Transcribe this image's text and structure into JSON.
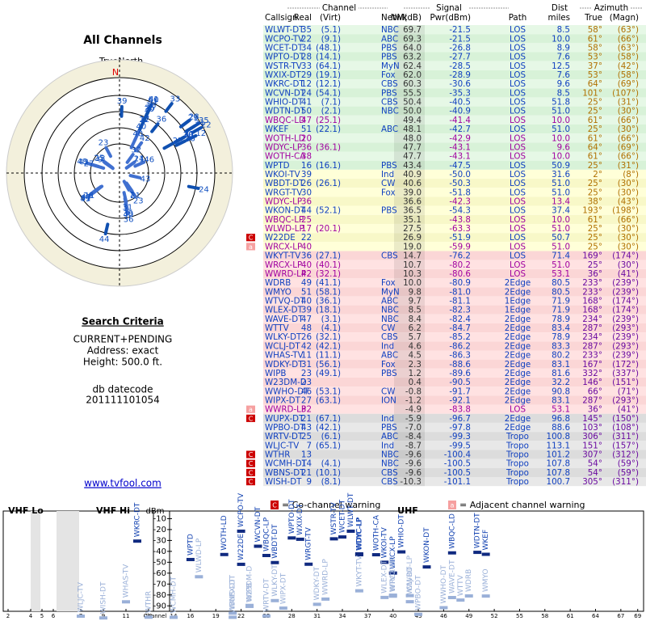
{
  "left": {
    "title": "All Channels",
    "north_label": "TrueNorth",
    "north_letter": "N",
    "criteria_title": "Search Criteria",
    "criteria": [
      "CURRENT+PENDING",
      "Address: exact",
      "Height: 500.0 ft."
    ],
    "datecode_label": "db datecode",
    "datecode": "201111101054",
    "link": "www.tvfool.com"
  },
  "table": {
    "groups": {
      "channel": "Channel",
      "signal": "Signal",
      "dist": "Dist",
      "azimuth": "Azimuth"
    },
    "headers": {
      "callsign": "Callsign",
      "real": "Real",
      "virt": "(Virt)",
      "netwk": "Netwk",
      "nm": "NM(dB)",
      "pwr": "Pwr(dBm)",
      "path": "Path",
      "dist": "miles",
      "true": "True",
      "magn": "(Magn)"
    },
    "rows": [
      {
        "callsign": "WLWT-DT",
        "real": "35",
        "virt": "(5.1)",
        "netwk": "NBC",
        "nm": "69.7",
        "pwr": "-21.5",
        "path": "LOS",
        "dist": "8.5",
        "true": "58°",
        "magn": "(63°)"
      },
      {
        "callsign": "WCPO-TV",
        "real": "22",
        "virt": "(9.1)",
        "netwk": "ABC",
        "nm": "69.3",
        "pwr": "-21.5",
        "path": "LOS",
        "dist": "10.0",
        "true": "61°",
        "magn": "(66°)"
      },
      {
        "callsign": "WCET-DT",
        "real": "34",
        "virt": "(48.1)",
        "netwk": "PBS",
        "nm": "64.0",
        "pwr": "-26.8",
        "path": "LOS",
        "dist": "8.9",
        "true": "58°",
        "magn": "(63°)"
      },
      {
        "callsign": "WPTO-DT",
        "real": "28",
        "virt": "(14.1)",
        "netwk": "PBS",
        "nm": "63.2",
        "pwr": "-27.7",
        "path": "LOS",
        "dist": "7.6",
        "true": "53°",
        "magn": "(58°)"
      },
      {
        "callsign": "WSTR-TV",
        "real": "33",
        "virt": "(64.1)",
        "netwk": "MyN",
        "nm": "62.4",
        "pwr": "-28.5",
        "path": "LOS",
        "dist": "12.5",
        "true": "37°",
        "magn": "(42°)"
      },
      {
        "callsign": "WXIX-DT",
        "real": "29",
        "virt": "(19.1)",
        "netwk": "Fox",
        "nm": "62.0",
        "pwr": "-28.9",
        "path": "LOS",
        "dist": "7.6",
        "true": "53°",
        "magn": "(58°)"
      },
      {
        "callsign": "WKRC-DT",
        "real": "12",
        "virt": "(12.1)",
        "netwk": "CBS",
        "nm": "60.3",
        "pwr": "-30.6",
        "path": "LOS",
        "dist": "9.6",
        "true": "64°",
        "magn": "(69°)"
      },
      {
        "callsign": "WCVN-DT",
        "real": "24",
        "virt": "(54.1)",
        "netwk": "PBS",
        "nm": "55.5",
        "pwr": "-35.3",
        "path": "LOS",
        "dist": "8.5",
        "true": "101°",
        "magn": "(107°)"
      },
      {
        "callsign": "WHIO-DT",
        "real": "41",
        "virt": "(7.1)",
        "netwk": "CBS",
        "nm": "50.4",
        "pwr": "-40.5",
        "path": "LOS",
        "dist": "51.8",
        "true": "25°",
        "magn": "(31°)"
      },
      {
        "callsign": "WDTN-DT",
        "real": "50",
        "virt": "(2.1)",
        "netwk": "NBC",
        "nm": "50.0",
        "pwr": "-40.9",
        "path": "LOS",
        "dist": "51.0",
        "true": "25°",
        "magn": "(30°)"
      },
      {
        "callsign": "WBQC-LD",
        "real": "47",
        "virt": "(25.1)",
        "netwk": "",
        "nm": "49.4",
        "pwr": "-41.4",
        "path": "LOS",
        "dist": "10.0",
        "true": "61°",
        "magn": "(66°)"
      },
      {
        "callsign": "WKEF",
        "real": "51",
        "virt": "(22.1)",
        "netwk": "ABC",
        "nm": "48.1",
        "pwr": "-42.7",
        "path": "LOS",
        "dist": "51.0",
        "true": "25°",
        "magn": "(30°)"
      },
      {
        "callsign": "WOTH-LD",
        "real": "20",
        "virt": "",
        "netwk": "",
        "nm": "48.0",
        "pwr": "-42.9",
        "path": "LOS",
        "dist": "10.0",
        "true": "61°",
        "magn": "(66°)"
      },
      {
        "callsign": "WDYC-LP",
        "real": "36",
        "virt": "(36.1)",
        "netwk": "",
        "nm": "47.7",
        "pwr": "-43.1",
        "path": "LOS",
        "dist": "9.6",
        "true": "64°",
        "magn": "(69°)"
      },
      {
        "callsign": "WOTH-CA",
        "real": "38",
        "virt": "",
        "netwk": "",
        "nm": "47.7",
        "pwr": "-43.1",
        "path": "LOS",
        "dist": "10.0",
        "true": "61°",
        "magn": "(66°)"
      },
      {
        "callsign": "WPTD",
        "real": "16",
        "virt": "(16.1)",
        "netwk": "PBS",
        "nm": "43.4",
        "pwr": "-47.5",
        "path": "LOS",
        "dist": "50.9",
        "true": "25°",
        "magn": "(31°)"
      },
      {
        "callsign": "WKOI-TV",
        "real": "39",
        "virt": "",
        "netwk": "Ind",
        "nm": "40.9",
        "pwr": "-50.0",
        "path": "LOS",
        "dist": "31.6",
        "true": "2°",
        "magn": "(8°)"
      },
      {
        "callsign": "WBDT-DT",
        "real": "26",
        "virt": "(26.1)",
        "netwk": "CW",
        "nm": "40.6",
        "pwr": "-50.3",
        "path": "LOS",
        "dist": "51.0",
        "true": "25°",
        "magn": "(30°)"
      },
      {
        "callsign": "WRGT-TV",
        "real": "30",
        "virt": "",
        "netwk": "Fox",
        "nm": "39.0",
        "pwr": "-51.8",
        "path": "LOS",
        "dist": "51.0",
        "true": "25°",
        "magn": "(30°)"
      },
      {
        "callsign": "WDYC-LP",
        "real": "36",
        "virt": "",
        "netwk": "",
        "nm": "36.6",
        "pwr": "-42.3",
        "path": "LOS",
        "dist": "13.4",
        "true": "38°",
        "magn": "(43°)"
      },
      {
        "callsign": "WKON-DT",
        "real": "44",
        "virt": "(52.1)",
        "netwk": "PBS",
        "nm": "36.5",
        "pwr": "-54.3",
        "path": "LOS",
        "dist": "37.4",
        "true": "193°",
        "magn": "(198°)"
      },
      {
        "callsign": "WBQC-LP",
        "real": "25",
        "virt": "",
        "netwk": "",
        "nm": "35.1",
        "pwr": "-43.8",
        "path": "LOS",
        "dist": "10.0",
        "true": "61°",
        "magn": "(66°)"
      },
      {
        "callsign": "WLWD-LP",
        "real": "17",
        "virt": "(20.1)",
        "netwk": "",
        "nm": "27.5",
        "pwr": "-63.3",
        "path": "LOS",
        "dist": "51.0",
        "true": "25°",
        "magn": "(30°)"
      },
      {
        "callsign": "W22DE",
        "real": "22",
        "virt": "",
        "netwk": "",
        "nm": "26.9",
        "pwr": "-51.9",
        "path": "LOS",
        "dist": "50.7",
        "true": "25°",
        "magn": "(30°)",
        "warn": "C"
      },
      {
        "callsign": "WRCX-LP",
        "real": "40",
        "virt": "",
        "netwk": "",
        "nm": "19.0",
        "pwr": "-59.9",
        "path": "LOS",
        "dist": "51.0",
        "true": "25°",
        "magn": "(30°)",
        "warn": "a"
      },
      {
        "callsign": "WKYT-TV",
        "real": "36",
        "virt": "(27.1)",
        "netwk": "CBS",
        "nm": "14.7",
        "pwr": "-76.2",
        "path": "LOS",
        "dist": "71.4",
        "true": "169°",
        "magn": "(174°)"
      },
      {
        "callsign": "WRCX-LP",
        "real": "40",
        "virt": "(40.1)",
        "netwk": "",
        "nm": "10.7",
        "pwr": "-80.2",
        "path": "LOS",
        "dist": "51.0",
        "true": "25°",
        "magn": "(30°)"
      },
      {
        "callsign": "WWRD-LP",
        "real": "42",
        "virt": "(32.1)",
        "netwk": "",
        "nm": "10.3",
        "pwr": "-80.6",
        "path": "LOS",
        "dist": "53.1",
        "true": "36°",
        "magn": "(41°)"
      },
      {
        "callsign": "WDRB",
        "real": "49",
        "virt": "(41.1)",
        "netwk": "Fox",
        "nm": "10.0",
        "pwr": "-80.9",
        "path": "2Edge",
        "dist": "80.5",
        "true": "233°",
        "magn": "(239°)"
      },
      {
        "callsign": "WMYO",
        "real": "51",
        "virt": "(58.1)",
        "netwk": "MyN",
        "nm": "9.8",
        "pwr": "-81.0",
        "path": "2Edge",
        "dist": "80.5",
        "true": "233°",
        "magn": "(239°)"
      },
      {
        "callsign": "WTVQ-DT",
        "real": "40",
        "virt": "(36.1)",
        "netwk": "ABC",
        "nm": "9.7",
        "pwr": "-81.1",
        "path": "1Edge",
        "dist": "71.9",
        "true": "168°",
        "magn": "(174°)"
      },
      {
        "callsign": "WLEX-DT",
        "real": "39",
        "virt": "(18.1)",
        "netwk": "NBC",
        "nm": "8.5",
        "pwr": "-82.3",
        "path": "1Edge",
        "dist": "71.9",
        "true": "168°",
        "magn": "(174°)"
      },
      {
        "callsign": "WAVE-DT",
        "real": "47",
        "virt": "(3.1)",
        "netwk": "NBC",
        "nm": "8.4",
        "pwr": "-82.4",
        "path": "2Edge",
        "dist": "78.9",
        "true": "234°",
        "magn": "(239°)"
      },
      {
        "callsign": "WTTV",
        "real": "48",
        "virt": "(4.1)",
        "netwk": "CW",
        "nm": "6.2",
        "pwr": "-84.7",
        "path": "2Edge",
        "dist": "83.4",
        "true": "287°",
        "magn": "(293°)"
      },
      {
        "callsign": "WLKY-DT",
        "real": "26",
        "virt": "(32.1)",
        "netwk": "CBS",
        "nm": "5.7",
        "pwr": "-85.2",
        "path": "2Edge",
        "dist": "78.9",
        "true": "234°",
        "magn": "(239°)"
      },
      {
        "callsign": "WCLJ-DT",
        "real": "42",
        "virt": "(42.1)",
        "netwk": "Ind",
        "nm": "4.6",
        "pwr": "-86.2",
        "path": "2Edge",
        "dist": "83.3",
        "true": "287°",
        "magn": "(293°)"
      },
      {
        "callsign": "WHAS-TV",
        "real": "11",
        "virt": "(11.1)",
        "netwk": "ABC",
        "nm": "4.5",
        "pwr": "-86.3",
        "path": "2Edge",
        "dist": "80.2",
        "true": "233°",
        "magn": "(239°)"
      },
      {
        "callsign": "WDKY-DT",
        "real": "31",
        "virt": "(56.1)",
        "netwk": "Fox",
        "nm": "2.3",
        "pwr": "-88.6",
        "path": "2Edge",
        "dist": "83.1",
        "true": "167°",
        "magn": "(172°)"
      },
      {
        "callsign": "WIPB",
        "real": "23",
        "virt": "(49.1)",
        "netwk": "PBS",
        "nm": "1.2",
        "pwr": "-89.6",
        "path": "2Edge",
        "dist": "81.6",
        "true": "332°",
        "magn": "(337°)"
      },
      {
        "callsign": "W23DM-D",
        "real": "23",
        "virt": "",
        "netwk": "",
        "nm": "0.4",
        "pwr": "-90.5",
        "path": "2Edge",
        "dist": "32.2",
        "true": "146°",
        "magn": "(151°)"
      },
      {
        "callsign": "WWHO-DT",
        "real": "46",
        "virt": "(53.1)",
        "netwk": "CW",
        "nm": "-0.8",
        "pwr": "-91.7",
        "path": "2Edge",
        "dist": "90.8",
        "true": "66°",
        "magn": "(71°)"
      },
      {
        "callsign": "WIPX-DT",
        "real": "27",
        "virt": "(63.1)",
        "netwk": "ION",
        "nm": "-1.2",
        "pwr": "-92.1",
        "path": "2Edge",
        "dist": "83.1",
        "true": "287°",
        "magn": "(293°)"
      },
      {
        "callsign": "WWRD-LP",
        "real": "32",
        "virt": "",
        "netwk": "",
        "nm": "-4.9",
        "pwr": "-83.8",
        "path": "LOS",
        "dist": "53.1",
        "true": "36°",
        "magn": "(41°)",
        "warn": "a"
      },
      {
        "callsign": "WUPX-DT",
        "real": "21",
        "virt": "(67.1)",
        "netwk": "Ind",
        "nm": "-5.9",
        "pwr": "-96.7",
        "path": "2Edge",
        "dist": "96.8",
        "true": "145°",
        "magn": "(150°)",
        "warn": "C"
      },
      {
        "callsign": "WPBO-DT",
        "real": "43",
        "virt": "(42.1)",
        "netwk": "PBS",
        "nm": "-7.0",
        "pwr": "-97.8",
        "path": "2Edge",
        "dist": "88.6",
        "true": "103°",
        "magn": "(108°)"
      },
      {
        "callsign": "WRTV-DT",
        "real": "25",
        "virt": "(6.1)",
        "netwk": "ABC",
        "nm": "-8.4",
        "pwr": "-99.3",
        "path": "Tropo",
        "dist": "100.8",
        "true": "306°",
        "magn": "(311°)"
      },
      {
        "callsign": "WLJC-TV",
        "real": "7",
        "virt": "(65.1)",
        "netwk": "Ind",
        "nm": "-8.7",
        "pwr": "-99.5",
        "path": "Tropo",
        "dist": "113.1",
        "true": "151°",
        "magn": "(157°)"
      },
      {
        "callsign": "WTHR",
        "real": "13",
        "virt": "",
        "netwk": "NBC",
        "nm": "-9.6",
        "pwr": "-100.4",
        "path": "Tropo",
        "dist": "101.2",
        "true": "307°",
        "magn": "(312°)",
        "warn": "C"
      },
      {
        "callsign": "WCMH-DT",
        "real": "14",
        "virt": "(4.1)",
        "netwk": "NBC",
        "nm": "-9.6",
        "pwr": "-100.5",
        "path": "Tropo",
        "dist": "107.8",
        "true": "54°",
        "magn": "(59°)",
        "warn": "C"
      },
      {
        "callsign": "WBNS-DT",
        "real": "21",
        "virt": "(10.1)",
        "netwk": "CBS",
        "nm": "-9.6",
        "pwr": "-100.5",
        "path": "Tropo",
        "dist": "107.8",
        "true": "54°",
        "magn": "(59°)",
        "warn": "C"
      },
      {
        "callsign": "WISH-DT",
        "real": "9",
        "virt": "(8.1)",
        "netwk": "CBS",
        "nm": "-10.3",
        "pwr": "-101.1",
        "path": "Tropo",
        "dist": "100.7",
        "true": "305°",
        "magn": "(311°)",
        "warn": "C"
      }
    ]
  },
  "spectrum": {
    "vhf_lo": "VHF Lo",
    "vhf_hi": "VHF Hi",
    "uhf": "UHF",
    "y_label": "dBm",
    "x_label": "Channel",
    "ylim": [
      -3,
      -95
    ],
    "yticks": [
      -10,
      -20,
      -30,
      -40,
      -50,
      -60,
      -70,
      -80,
      -90
    ],
    "xticks": [
      2,
      4,
      5,
      6,
      7,
      9,
      11,
      13,
      14,
      16,
      19,
      22,
      25,
      28,
      31,
      34,
      37,
      40,
      43,
      46,
      49,
      52,
      55,
      58,
      61,
      64,
      67,
      69
    ],
    "legend": [
      {
        "box": "C",
        "text": "= Co-channel warning"
      },
      {
        "box": "a",
        "text": "= Adjacent channel warning"
      }
    ]
  }
}
